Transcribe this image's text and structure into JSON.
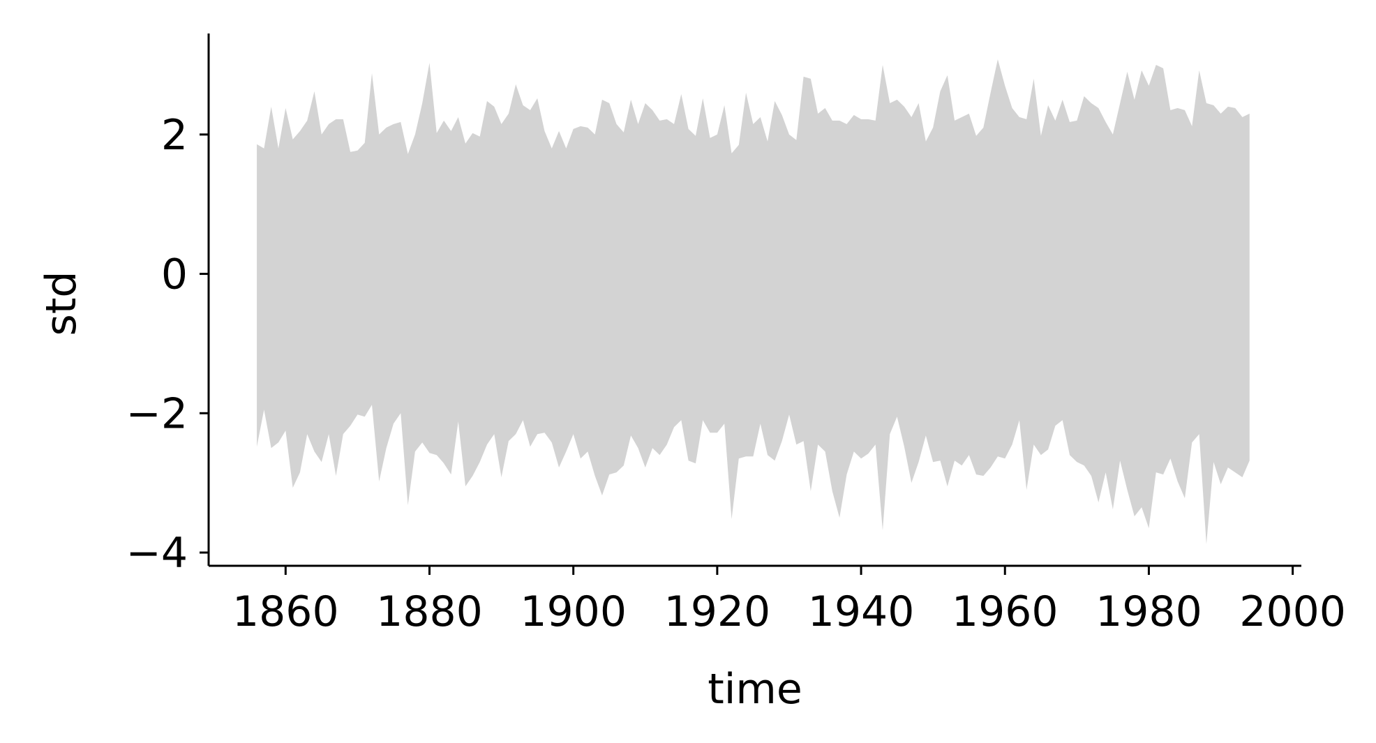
{
  "chart_data": {
    "type": "area",
    "color": "#d3d3d3",
    "xlabel": "time",
    "ylabel": "std",
    "x": [
      1856,
      1857,
      1858,
      1859,
      1860,
      1861,
      1862,
      1863,
      1864,
      1865,
      1866,
      1867,
      1868,
      1869,
      1870,
      1871,
      1872,
      1873,
      1874,
      1875,
      1876,
      1877,
      1878,
      1879,
      1880,
      1881,
      1882,
      1883,
      1884,
      1885,
      1886,
      1887,
      1888,
      1889,
      1890,
      1891,
      1892,
      1893,
      1894,
      1895,
      1896,
      1897,
      1898,
      1899,
      1900,
      1901,
      1902,
      1903,
      1904,
      1905,
      1906,
      1907,
      1908,
      1909,
      1910,
      1911,
      1912,
      1913,
      1914,
      1915,
      1916,
      1917,
      1918,
      1919,
      1920,
      1921,
      1922,
      1923,
      1924,
      1925,
      1926,
      1927,
      1928,
      1929,
      1930,
      1931,
      1932,
      1933,
      1934,
      1935,
      1936,
      1937,
      1938,
      1939,
      1940,
      1941,
      1942,
      1943,
      1944,
      1945,
      1946,
      1947,
      1948,
      1949,
      1950,
      1951,
      1952,
      1953,
      1954,
      1955,
      1956,
      1957,
      1958,
      1959,
      1960,
      1961,
      1962,
      1963,
      1964,
      1965,
      1966,
      1967,
      1968,
      1969,
      1970,
      1971,
      1972,
      1973,
      1974,
      1975,
      1976,
      1977,
      1978,
      1979,
      1980,
      1981,
      1982,
      1983,
      1984,
      1985,
      1986,
      1987,
      1988,
      1989,
      1990,
      1991,
      1992,
      1993,
      1994
    ],
    "upper": [
      1.86,
      1.8,
      2.4,
      1.8,
      2.38,
      1.93,
      2.05,
      2.2,
      2.62,
      2.0,
      2.15,
      2.22,
      2.22,
      1.75,
      1.77,
      1.88,
      2.88,
      2.0,
      2.1,
      2.15,
      2.18,
      1.72,
      2.0,
      2.45,
      3.03,
      2.02,
      2.2,
      2.05,
      2.25,
      1.87,
      2.02,
      1.97,
      2.48,
      2.4,
      2.15,
      2.3,
      2.72,
      2.42,
      2.35,
      2.52,
      2.05,
      1.8,
      2.05,
      1.8,
      2.08,
      2.12,
      2.1,
      2.0,
      2.5,
      2.45,
      2.15,
      2.03,
      2.5,
      2.15,
      2.45,
      2.35,
      2.2,
      2.22,
      2.15,
      2.58,
      2.08,
      1.98,
      2.52,
      1.95,
      2.0,
      2.42,
      1.73,
      1.85,
      2.6,
      2.15,
      2.25,
      1.9,
      2.48,
      2.28,
      2.0,
      1.92,
      2.83,
      2.8,
      2.3,
      2.38,
      2.2,
      2.2,
      2.15,
      2.28,
      2.22,
      2.22,
      2.2,
      3.0,
      2.45,
      2.5,
      2.4,
      2.25,
      2.45,
      1.9,
      2.1,
      2.62,
      2.85,
      2.2,
      2.25,
      2.3,
      1.98,
      2.1,
      2.6,
      3.08,
      2.7,
      2.38,
      2.25,
      2.22,
      2.8,
      1.98,
      2.42,
      2.2,
      2.5,
      2.18,
      2.2,
      2.55,
      2.45,
      2.38,
      2.18,
      2.0,
      2.45,
      2.9,
      2.5,
      2.92,
      2.7,
      3.0,
      2.95,
      2.35,
      2.38,
      2.35,
      2.12,
      2.92,
      2.45,
      2.42,
      2.3,
      2.4,
      2.38,
      2.25,
      2.3
    ],
    "lower": [
      -2.48,
      -1.95,
      -2.5,
      -2.42,
      -2.25,
      -3.07,
      -2.85,
      -2.3,
      -2.55,
      -2.7,
      -2.3,
      -2.9,
      -2.3,
      -2.18,
      -2.02,
      -2.05,
      -1.88,
      -2.98,
      -2.5,
      -2.15,
      -2.0,
      -3.32,
      -2.55,
      -2.42,
      -2.57,
      -2.6,
      -2.72,
      -2.88,
      -2.12,
      -3.05,
      -2.9,
      -2.7,
      -2.45,
      -2.3,
      -2.92,
      -2.4,
      -2.3,
      -2.1,
      -2.48,
      -2.3,
      -2.28,
      -2.42,
      -2.78,
      -2.55,
      -2.3,
      -2.65,
      -2.55,
      -2.9,
      -3.18,
      -2.88,
      -2.85,
      -2.75,
      -2.32,
      -2.5,
      -2.78,
      -2.5,
      -2.6,
      -2.45,
      -2.2,
      -2.1,
      -2.68,
      -2.72,
      -2.1,
      -2.28,
      -2.28,
      -2.15,
      -3.52,
      -2.65,
      -2.62,
      -2.62,
      -2.15,
      -2.6,
      -2.68,
      -2.4,
      -2.02,
      -2.45,
      -2.4,
      -3.12,
      -2.45,
      -2.55,
      -3.12,
      -3.5,
      -2.88,
      -2.55,
      -2.65,
      -2.58,
      -2.45,
      -3.68,
      -2.3,
      -2.05,
      -2.48,
      -3.0,
      -2.7,
      -2.32,
      -2.7,
      -2.68,
      -3.05,
      -2.68,
      -2.75,
      -2.6,
      -2.88,
      -2.9,
      -2.78,
      -2.62,
      -2.65,
      -2.45,
      -2.1,
      -3.1,
      -2.45,
      -2.6,
      -2.52,
      -2.18,
      -2.1,
      -2.6,
      -2.7,
      -2.75,
      -2.9,
      -3.28,
      -2.85,
      -3.38,
      -2.68,
      -3.1,
      -3.48,
      -3.35,
      -3.65,
      -2.85,
      -2.88,
      -2.65,
      -2.98,
      -3.22,
      -2.42,
      -2.3,
      -3.88,
      -2.7,
      -3.02,
      -2.78,
      -2.85,
      -2.92,
      -2.68
    ],
    "xlim": [
      1849.3,
      2001.2
    ],
    "ylim": [
      -4.19,
      3.45
    ],
    "xticks": [
      1860,
      1880,
      1900,
      1920,
      1940,
      1960,
      1980,
      2000
    ],
    "yticks": [
      {
        "value": -4,
        "label": "−4"
      },
      {
        "value": -2,
        "label": "−2"
      },
      0,
      2
    ]
  }
}
